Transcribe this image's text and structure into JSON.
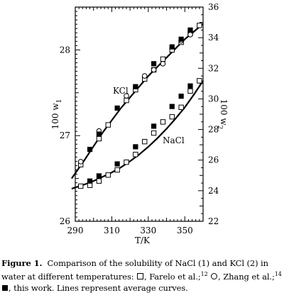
{
  "chart_data": {
    "type": "scatter",
    "xlabel": "T/K",
    "ylabel_left": "100 w1",
    "ylabel_right": "100 w2",
    "xlim": [
      290,
      360
    ],
    "ylim_left": [
      26,
      28.5
    ],
    "ylim_right": [
      22,
      36
    ],
    "x_ticks": [
      290,
      310,
      330,
      350
    ],
    "y_left_ticks": [
      26,
      27,
      28
    ],
    "y_right_ticks": [
      22,
      24,
      26,
      28,
      30,
      32,
      34,
      36
    ],
    "grid": false,
    "series": [
      {
        "name": "NaCl",
        "axis": "left",
        "marker": "open-square",
        "x": [
          293,
          298,
          303,
          308,
          313,
          318,
          323,
          328,
          333,
          338,
          343,
          348,
          353,
          358
        ],
        "y": [
          26.41,
          26.42,
          26.47,
          26.54,
          26.6,
          26.69,
          26.78,
          26.93,
          27.03,
          27.16,
          27.22,
          27.33,
          27.52,
          27.64
        ]
      },
      {
        "name": "NaCl",
        "axis": "left",
        "marker": "filled-square",
        "x": [
          298,
          303,
          313,
          323,
          333,
          343,
          348,
          353
        ],
        "y": [
          26.47,
          26.53,
          26.67,
          26.87,
          27.11,
          27.34,
          27.46,
          27.58
        ]
      },
      {
        "name": "KCl",
        "axis": "right",
        "marker": "open-square",
        "x": [
          293,
          303,
          308,
          318,
          323,
          328,
          333,
          338,
          343,
          348,
          353,
          358
        ],
        "y": [
          25.7,
          27.4,
          28.3,
          29.9,
          30.6,
          31.3,
          31.9,
          32.6,
          33.2,
          33.7,
          34.3,
          34.8
        ]
      },
      {
        "name": "KCl",
        "axis": "right",
        "marker": "open-circle",
        "x": [
          293,
          303,
          318,
          328,
          333,
          338,
          348,
          353
        ],
        "y": [
          25.9,
          27.9,
          30.2,
          31.5,
          31.9,
          32.3,
          33.8,
          34.2
        ]
      },
      {
        "name": "KCl",
        "axis": "right",
        "marker": "filled-square",
        "x": [
          298,
          303,
          313,
          323,
          333,
          343,
          348,
          353
        ],
        "y": [
          26.7,
          27.7,
          29.4,
          30.8,
          32.3,
          33.4,
          33.9,
          34.5
        ]
      }
    ],
    "curves": [
      {
        "name": "NaCl",
        "axis": "left",
        "x": [
          288,
          295,
          300,
          305,
          310,
          315,
          320,
          325,
          330,
          335,
          340,
          345,
          350,
          355,
          360
        ],
        "y": [
          26.38,
          26.43,
          26.47,
          26.52,
          26.57,
          26.63,
          26.7,
          26.78,
          26.87,
          26.97,
          27.08,
          27.2,
          27.33,
          27.48,
          27.64
        ]
      },
      {
        "name": "KCl",
        "axis": "right",
        "x": [
          288,
          295,
          300,
          305,
          310,
          315,
          320,
          325,
          330,
          335,
          340,
          345,
          350,
          355,
          360
        ],
        "y": [
          24.8,
          26.0,
          26.9,
          27.8,
          28.6,
          29.4,
          30.1,
          30.8,
          31.5,
          32.1,
          32.7,
          33.3,
          33.9,
          34.4,
          34.9
        ]
      }
    ]
  },
  "labels": {
    "kcl": "KCl",
    "nacl": "NaCl",
    "xlabel": "T/K",
    "ylabel_left_main": "100 w",
    "ylabel_left_sub": "1",
    "ylabel_right_main": "100 w",
    "ylabel_right_sub": "2"
  },
  "caption": {
    "figure_label": "Figure 1.",
    "part1": "Comparison of the solubility of NaCl (1) and KCl (2) in water at different temperatures:",
    "part2": ", Farelo et al.;",
    "ref1": "12",
    "part3": ", Zhang et al.;",
    "ref2": "14",
    "part4": ", this work. Lines represent average curves."
  }
}
